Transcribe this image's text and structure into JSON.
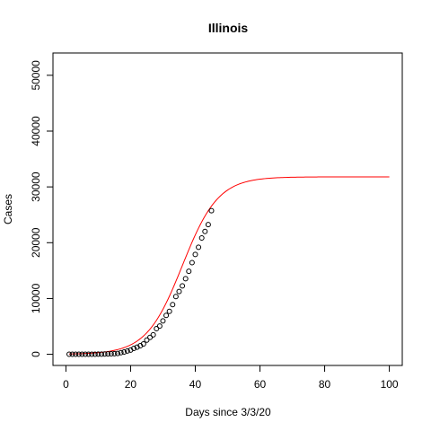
{
  "chart_data": {
    "type": "scatter",
    "title": "Illinois",
    "xlabel": "Days since 3/3/20",
    "ylabel": "Cases",
    "xlim": [
      -4,
      104
    ],
    "ylim": [
      -2000,
      54000
    ],
    "x_ticks": [
      0,
      20,
      40,
      60,
      80,
      100
    ],
    "x_tick_labels": [
      "0",
      "20",
      "40",
      "60",
      "80",
      "100"
    ],
    "y_ticks": [
      0,
      10000,
      20000,
      30000,
      40000,
      50000
    ],
    "y_tick_labels": [
      "0",
      "10000",
      "20000",
      "30000",
      "40000",
      "50000"
    ],
    "grid": false,
    "series": [
      {
        "type": "scatter",
        "color": "#000000",
        "marker": "open-circle",
        "x": [
          1,
          2,
          3,
          4,
          5,
          6,
          7,
          8,
          9,
          10,
          11,
          12,
          13,
          14,
          15,
          16,
          17,
          18,
          19,
          20,
          21,
          22,
          23,
          24,
          25,
          26,
          27,
          28,
          29,
          30,
          31,
          32,
          33,
          34,
          35,
          36,
          37,
          38,
          39,
          40,
          41,
          42,
          43,
          44,
          45
        ],
        "y": [
          4,
          4,
          6,
          6,
          6,
          7,
          11,
          12,
          19,
          25,
          32,
          46,
          64,
          93,
          105,
          160,
          288,
          422,
          585,
          753,
          1049,
          1285,
          1535,
          1865,
          2538,
          3026,
          3491,
          4596,
          5056,
          5994,
          6980,
          7695,
          8904,
          10357,
          11256,
          12262,
          13549,
          14876,
          16422,
          17887,
          19180,
          20852,
          22025,
          23247,
          25733
        ]
      },
      {
        "type": "line",
        "color": "#ff0000",
        "fit": "logistic",
        "K": 31800,
        "r": 0.18,
        "x0": 36
      }
    ]
  }
}
